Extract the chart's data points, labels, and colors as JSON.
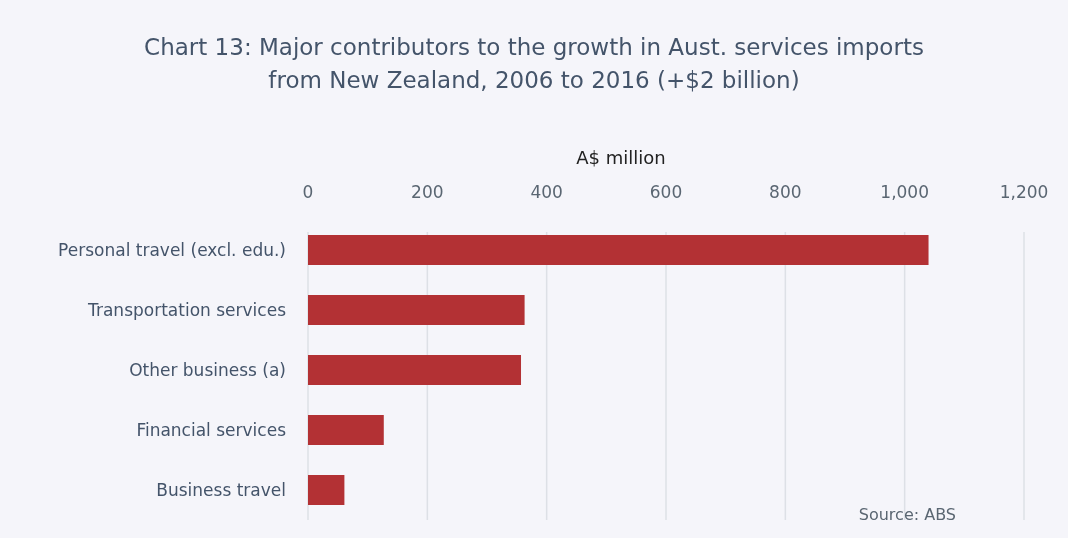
{
  "chart_data": {
    "type": "bar",
    "orientation": "horizontal",
    "title": "Chart 13: Major contributors to the growth in Aust. services imports from New Zealand, 2006 to 2016 (+$2 billion)",
    "xlabel": "A$ million",
    "categories": [
      "Personal travel (excl. edu.)",
      "Transportation services",
      "Other business (a)",
      "Financial services",
      "Business travel"
    ],
    "values": [
      1040,
      363,
      357,
      127,
      61
    ],
    "color": "#b33134",
    "xlim": [
      0,
      1200
    ],
    "xticks": [
      0,
      200,
      400,
      600,
      800,
      {
        "value": 1000,
        "label": "1,000"
      },
      {
        "value": 1200,
        "label": "1,200"
      }
    ],
    "grid": "x",
    "annotations": [
      "Source: ABS"
    ]
  }
}
